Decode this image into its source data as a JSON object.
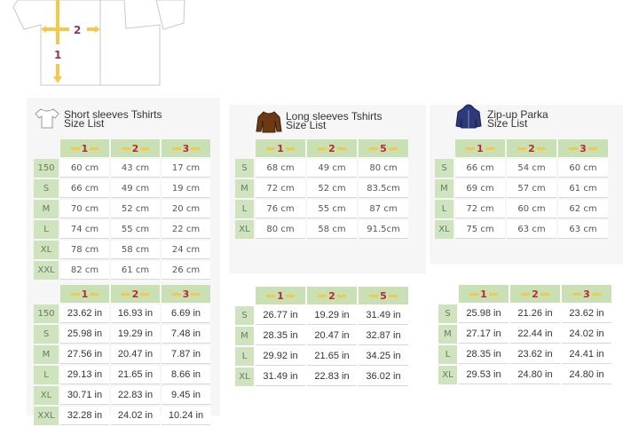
{
  "diagram": {
    "label_1": "1",
    "label_2": "2"
  },
  "products": [
    {
      "icon": "short-sleeve-tshirt-icon",
      "title_line1": "Short sleeves Tshirts",
      "title_line2": "Size List",
      "columns": [
        "1",
        "2",
        "3"
      ],
      "cm": {
        "rows": [
          {
            "size": "150",
            "values": [
              "60 cm",
              "43 cm",
              "17 cm"
            ]
          },
          {
            "size": "S",
            "values": [
              "66 cm",
              "49 cm",
              "19 cm"
            ]
          },
          {
            "size": "M",
            "values": [
              "70 cm",
              "52 cm",
              "20 cm"
            ]
          },
          {
            "size": "L",
            "values": [
              "74 cm",
              "55 cm",
              "22 cm"
            ]
          },
          {
            "size": "XL",
            "values": [
              "78 cm",
              "58 cm",
              "24 cm"
            ]
          },
          {
            "size": "XXL",
            "values": [
              "82 cm",
              "61 cm",
              "26 cm"
            ]
          }
        ]
      },
      "inch": {
        "rows": [
          {
            "size": "150",
            "values": [
              "23.62 in",
              "16.93 in",
              "6.69 in"
            ]
          },
          {
            "size": "S",
            "values": [
              "25.98 in",
              "19.29 in",
              "7.48 in"
            ]
          },
          {
            "size": "M",
            "values": [
              "27.56 in",
              "20.47 in",
              "7.87 in"
            ]
          },
          {
            "size": "L",
            "values": [
              "29.13 in",
              "21.65 in",
              "8.66 in"
            ]
          },
          {
            "size": "XL",
            "values": [
              "30.71 in",
              "22.83 in",
              "9.45 in"
            ]
          },
          {
            "size": "XXL",
            "values": [
              "32.28 in",
              "24.02 in",
              "10.24 in"
            ]
          }
        ]
      }
    },
    {
      "icon": "long-sleeve-tshirt-icon",
      "title_line1": "Long sleeves Tshirts",
      "title_line2": "Size List",
      "columns": [
        "1",
        "2",
        "5"
      ],
      "cm": {
        "rows": [
          {
            "size": "S",
            "values": [
              "68 cm",
              "49 cm",
              "80 cm"
            ]
          },
          {
            "size": "M",
            "values": [
              "72 cm",
              "52 cm",
              "83.5cm"
            ]
          },
          {
            "size": "L",
            "values": [
              "76 cm",
              "55 cm",
              "87 cm"
            ]
          },
          {
            "size": "XL",
            "values": [
              "80 cm",
              "58 cm",
              "91.5cm"
            ]
          }
        ]
      },
      "inch": {
        "rows": [
          {
            "size": "S",
            "values": [
              "26.77 in",
              "19.29 in",
              "31.49 in"
            ]
          },
          {
            "size": "M",
            "values": [
              "28.35 in",
              "20.47 in",
              "32.87 in"
            ]
          },
          {
            "size": "L",
            "values": [
              "29.92 in",
              "21.65 in",
              "34.25 in"
            ]
          },
          {
            "size": "XL",
            "values": [
              "31.49 in",
              "22.83 in",
              "36.02 in"
            ]
          }
        ]
      }
    },
    {
      "icon": "zip-up-parka-icon",
      "title_line1": "Zip-up Parka",
      "title_line2": "Size List",
      "columns": [
        "1",
        "2",
        "3"
      ],
      "cm": {
        "rows": [
          {
            "size": "S",
            "values": [
              "66 cm",
              "54 cm",
              "60 cm"
            ]
          },
          {
            "size": "M",
            "values": [
              "69 cm",
              "57 cm",
              "61 cm"
            ]
          },
          {
            "size": "L",
            "values": [
              "72 cm",
              "60 cm",
              "62 cm"
            ]
          },
          {
            "size": "XL",
            "values": [
              "75 cm",
              "63 cm",
              "63 cm"
            ]
          }
        ]
      },
      "inch": {
        "rows": [
          {
            "size": "S",
            "values": [
              "25.98 in",
              "21.26 in",
              "23.62 in"
            ]
          },
          {
            "size": "M",
            "values": [
              "27.17 in",
              "22.44 in",
              "24.02 in"
            ]
          },
          {
            "size": "L",
            "values": [
              "28.35 in",
              "23.62 in",
              "24.41 in"
            ]
          },
          {
            "size": "XL",
            "values": [
              "29.53 in",
              "24.80 in",
              "24.80 in"
            ]
          }
        ]
      }
    }
  ],
  "colors": {
    "header_green": "#c9e0b5",
    "header_number": "#c0282a",
    "measure_arrow": "#f3c94a",
    "long_sleeve_icon": "#6b3a12",
    "parka_icon": "#2c3a78"
  }
}
